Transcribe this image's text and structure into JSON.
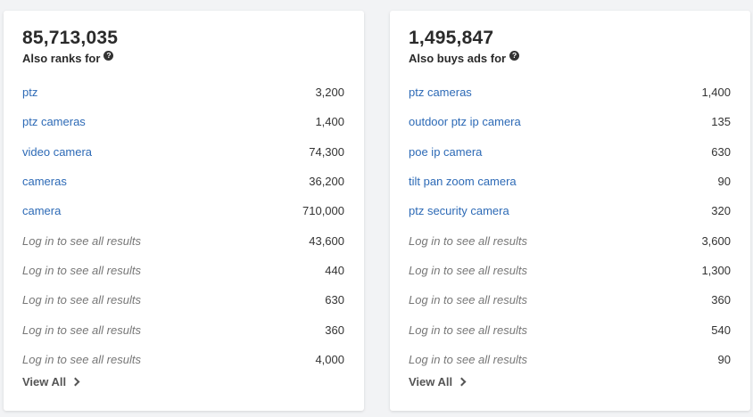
{
  "left": {
    "total": "85,713,035",
    "label": "Also ranks for",
    "help_glyph": "?",
    "view_all": "View All",
    "rows": [
      {
        "keyword": "ptz",
        "value": "3,200"
      },
      {
        "keyword": "ptz cameras",
        "value": "1,400"
      },
      {
        "keyword": "video camera",
        "value": "74,300"
      },
      {
        "keyword": "cameras",
        "value": "36,200"
      },
      {
        "keyword": "camera",
        "value": "710,000"
      },
      {
        "keyword": "Log in to see all results",
        "value": "43,600"
      },
      {
        "keyword": "Log in to see all results",
        "value": "440"
      },
      {
        "keyword": "Log in to see all results",
        "value": "630"
      },
      {
        "keyword": "Log in to see all results",
        "value": "360"
      },
      {
        "keyword": "Log in to see all results",
        "value": "4,000"
      }
    ]
  },
  "right": {
    "total": "1,495,847",
    "label": "Also buys ads for",
    "help_glyph": "?",
    "view_all": "View All",
    "rows": [
      {
        "keyword": "ptz cameras",
        "value": "1,400"
      },
      {
        "keyword": "outdoor ptz ip camera",
        "value": "135"
      },
      {
        "keyword": "poe ip camera",
        "value": "630"
      },
      {
        "keyword": "tilt pan zoom camera",
        "value": "90"
      },
      {
        "keyword": "ptz security camera",
        "value": "320"
      },
      {
        "keyword": "Log in to see all results",
        "value": "3,600"
      },
      {
        "keyword": "Log in to see all results",
        "value": "1,300"
      },
      {
        "keyword": "Log in to see all results",
        "value": "360"
      },
      {
        "keyword": "Log in to see all results",
        "value": "540"
      },
      {
        "keyword": "Log in to see all results",
        "value": "90"
      }
    ]
  },
  "colors": {
    "link": "#2d6ab6",
    "locked": "#777777",
    "background": "#f2f3f5"
  }
}
